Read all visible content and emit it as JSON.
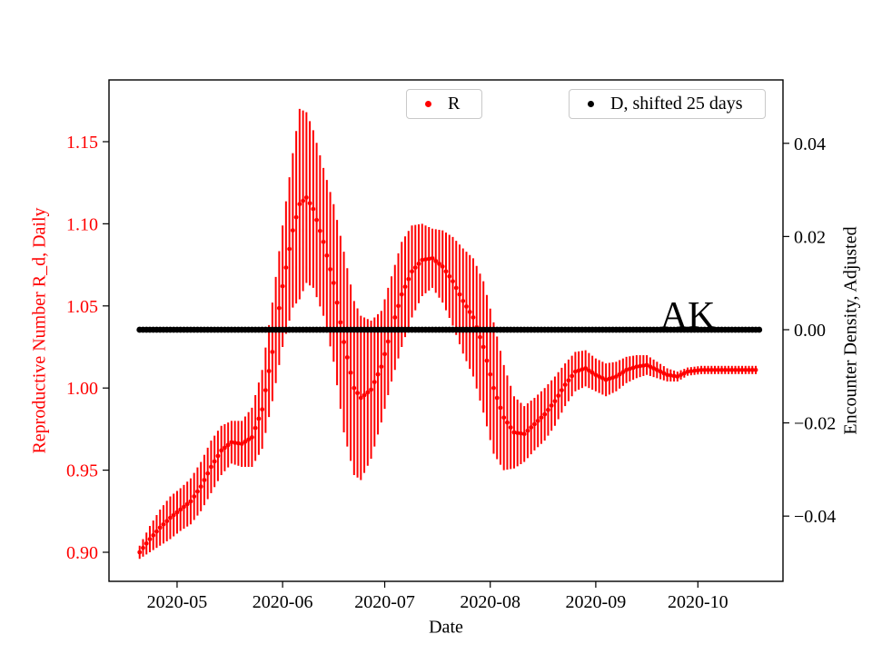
{
  "chart_data": {
    "type": "scatter",
    "title": "",
    "xlabel": "Date",
    "ylabel_left": "Reproductive Number R_d, Daily",
    "ylabel_right": "Encounter Density, Adjusted",
    "x_range": [
      "2020-04-11",
      "2020-10-26"
    ],
    "y_left_range": [
      0.8823,
      1.1876
    ],
    "y_right_range": [
      -0.054,
      0.0536
    ],
    "grid": false,
    "colors": {
      "frame": "#000000",
      "left_axis": "#ff0000",
      "right_axis": "#000000"
    },
    "x_ticks": [
      {
        "date": "2020-05-01",
        "label": "2020-05"
      },
      {
        "date": "2020-06-01",
        "label": "2020-06"
      },
      {
        "date": "2020-07-01",
        "label": "2020-07"
      },
      {
        "date": "2020-08-01",
        "label": "2020-08"
      },
      {
        "date": "2020-09-01",
        "label": "2020-09"
      },
      {
        "date": "2020-10-01",
        "label": "2020-10"
      }
    ],
    "y_left_ticks": [
      {
        "v": 0.9,
        "label": "0.90"
      },
      {
        "v": 0.95,
        "label": "0.95"
      },
      {
        "v": 1.0,
        "label": "1.00"
      },
      {
        "v": 1.05,
        "label": "1.05"
      },
      {
        "v": 1.1,
        "label": "1.10"
      },
      {
        "v": 1.15,
        "label": "1.15"
      }
    ],
    "y_right_ticks": [
      {
        "v": -0.04,
        "label": "−0.04"
      },
      {
        "v": -0.02,
        "label": "−0.02"
      },
      {
        "v": 0.0,
        "label": "0.00"
      },
      {
        "v": 0.02,
        "label": "0.02"
      },
      {
        "v": 0.04,
        "label": "0.04"
      }
    ],
    "legend": [
      {
        "label": "R",
        "color": "#ff0000"
      },
      {
        "label": "D, shifted 25 days",
        "color": "#000000"
      }
    ],
    "annotation": {
      "text": "AK",
      "date": "2020-09-28",
      "value": 0.0
    },
    "series": [
      {
        "name": "R",
        "axis": "left",
        "color": "#ff0000",
        "style": "errorbar-dots",
        "points": [
          {
            "d": "2020-04-20",
            "r": 0.9,
            "e": 0.004
          },
          {
            "d": "2020-04-23",
            "r": 0.908,
            "e": 0.008
          },
          {
            "d": "2020-04-26",
            "r": 0.915,
            "e": 0.011
          },
          {
            "d": "2020-04-29",
            "r": 0.921,
            "e": 0.013
          },
          {
            "d": "2020-05-02",
            "r": 0.926,
            "e": 0.013
          },
          {
            "d": "2020-05-05",
            "r": 0.931,
            "e": 0.014
          },
          {
            "d": "2020-05-08",
            "r": 0.94,
            "e": 0.015
          },
          {
            "d": "2020-05-11",
            "r": 0.952,
            "e": 0.016
          },
          {
            "d": "2020-05-14",
            "r": 0.962,
            "e": 0.015
          },
          {
            "d": "2020-05-17",
            "r": 0.967,
            "e": 0.013
          },
          {
            "d": "2020-05-20",
            "r": 0.966,
            "e": 0.014
          },
          {
            "d": "2020-05-23",
            "r": 0.97,
            "e": 0.018
          },
          {
            "d": "2020-05-26",
            "r": 0.987,
            "e": 0.024
          },
          {
            "d": "2020-05-29",
            "r": 1.022,
            "e": 0.03
          },
          {
            "d": "2020-06-01",
            "r": 1.062,
            "e": 0.037
          },
          {
            "d": "2020-06-04",
            "r": 1.096,
            "e": 0.047
          },
          {
            "d": "2020-06-06",
            "r": 1.112,
            "e": 0.058
          },
          {
            "d": "2020-06-08",
            "r": 1.116,
            "e": 0.052
          },
          {
            "d": "2020-06-10",
            "r": 1.109,
            "e": 0.048
          },
          {
            "d": "2020-06-13",
            "r": 1.089,
            "e": 0.045
          },
          {
            "d": "2020-06-16",
            "r": 1.064,
            "e": 0.048
          },
          {
            "d": "2020-06-19",
            "r": 1.028,
            "e": 0.055
          },
          {
            "d": "2020-06-22",
            "r": 1.0,
            "e": 0.053
          },
          {
            "d": "2020-06-24",
            "r": 0.994,
            "e": 0.05
          },
          {
            "d": "2020-06-27",
            "r": 0.999,
            "e": 0.042
          },
          {
            "d": "2020-06-30",
            "r": 1.013,
            "e": 0.034
          },
          {
            "d": "2020-07-03",
            "r": 1.036,
            "e": 0.032
          },
          {
            "d": "2020-07-06",
            "r": 1.057,
            "e": 0.032
          },
          {
            "d": "2020-07-09",
            "r": 1.071,
            "e": 0.028
          },
          {
            "d": "2020-07-12",
            "r": 1.078,
            "e": 0.022
          },
          {
            "d": "2020-07-15",
            "r": 1.079,
            "e": 0.018
          },
          {
            "d": "2020-07-18",
            "r": 1.074,
            "e": 0.022
          },
          {
            "d": "2020-07-21",
            "r": 1.065,
            "e": 0.027
          },
          {
            "d": "2020-07-24",
            "r": 1.053,
            "e": 0.032
          },
          {
            "d": "2020-07-27",
            "r": 1.043,
            "e": 0.036
          },
          {
            "d": "2020-07-30",
            "r": 1.025,
            "e": 0.04
          },
          {
            "d": "2020-08-02",
            "r": 1.0,
            "e": 0.04
          },
          {
            "d": "2020-08-05",
            "r": 0.982,
            "e": 0.032
          },
          {
            "d": "2020-08-08",
            "r": 0.973,
            "e": 0.022
          },
          {
            "d": "2020-08-11",
            "r": 0.972,
            "e": 0.017
          },
          {
            "d": "2020-08-14",
            "r": 0.978,
            "e": 0.016
          },
          {
            "d": "2020-08-17",
            "r": 0.984,
            "e": 0.016
          },
          {
            "d": "2020-08-20",
            "r": 0.992,
            "e": 0.015
          },
          {
            "d": "2020-08-23",
            "r": 1.002,
            "e": 0.013
          },
          {
            "d": "2020-08-26",
            "r": 1.01,
            "e": 0.012
          },
          {
            "d": "2020-08-29",
            "r": 1.012,
            "e": 0.011
          },
          {
            "d": "2020-09-01",
            "r": 1.008,
            "e": 0.01
          },
          {
            "d": "2020-09-04",
            "r": 1.005,
            "e": 0.01
          },
          {
            "d": "2020-09-07",
            "r": 1.007,
            "e": 0.009
          },
          {
            "d": "2020-09-10",
            "r": 1.011,
            "e": 0.008
          },
          {
            "d": "2020-09-13",
            "r": 1.013,
            "e": 0.007
          },
          {
            "d": "2020-09-16",
            "r": 1.014,
            "e": 0.006
          },
          {
            "d": "2020-09-19",
            "r": 1.011,
            "e": 0.005
          },
          {
            "d": "2020-09-22",
            "r": 1.008,
            "e": 0.004
          },
          {
            "d": "2020-09-25",
            "r": 1.007,
            "e": 0.003
          },
          {
            "d": "2020-09-28",
            "r": 1.01,
            "e": 0.0025
          },
          {
            "d": "2020-10-02",
            "r": 1.011,
            "e": 0.0025
          },
          {
            "d": "2020-10-06",
            "r": 1.011,
            "e": 0.0025
          },
          {
            "d": "2020-10-10",
            "r": 1.011,
            "e": 0.0025
          },
          {
            "d": "2020-10-14",
            "r": 1.011,
            "e": 0.0025
          },
          {
            "d": "2020-10-18",
            "r": 1.011,
            "e": 0.0025
          }
        ]
      },
      {
        "name": "D, shifted 25 days",
        "axis": "right",
        "color": "#000000",
        "style": "dots",
        "value": 0.0,
        "start": "2020-04-20",
        "end": "2020-10-19"
      }
    ]
  }
}
